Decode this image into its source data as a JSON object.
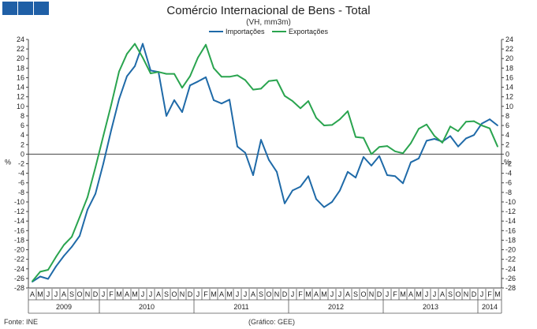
{
  "header": {
    "logo_color": "#1f5fa6",
    "title": "Comércio Internacional de Bens - Total",
    "subtitle": "(VH, mm3m)"
  },
  "footer": {
    "source": "Fonte: INE",
    "credit": "(Gráfico: GEE)"
  },
  "chart_data": {
    "type": "line",
    "title": "Comércio Internacional de Bens - Total",
    "subtitle": "(VH, mm3m)",
    "ylabel_left": "%",
    "ylabel_right": "%",
    "ylim": [
      -28,
      24
    ],
    "y_ticks": [
      24,
      22,
      20,
      18,
      16,
      14,
      12,
      10,
      8,
      6,
      4,
      2,
      0,
      -2,
      -4,
      -6,
      -8,
      -10,
      -12,
      -14,
      -16,
      -18,
      -20,
      -22,
      -24,
      -26,
      -28
    ],
    "grid": false,
    "legend_position": "top-center",
    "x_months": [
      "A",
      "M",
      "J",
      "J",
      "A",
      "S",
      "O",
      "N",
      "D",
      "J",
      "F",
      "M",
      "A",
      "M",
      "J",
      "J",
      "A",
      "S",
      "O",
      "N",
      "D",
      "J",
      "F",
      "M",
      "A",
      "M",
      "J",
      "J",
      "A",
      "S",
      "O",
      "N",
      "D",
      "J",
      "F",
      "M",
      "A",
      "M",
      "J",
      "J",
      "A",
      "S",
      "O",
      "N",
      "D",
      "J",
      "F",
      "M",
      "A",
      "M",
      "J",
      "J",
      "A",
      "S",
      "O",
      "N",
      "D",
      "J",
      "F",
      "M"
    ],
    "x_years": [
      {
        "label": "2009",
        "start": 0,
        "count": 9
      },
      {
        "label": "2010",
        "start": 9,
        "count": 12
      },
      {
        "label": "2011",
        "start": 21,
        "count": 12
      },
      {
        "label": "2012",
        "start": 33,
        "count": 12
      },
      {
        "label": "2013",
        "start": 45,
        "count": 12
      },
      {
        "label": "2014",
        "start": 57,
        "count": 3
      }
    ],
    "series": [
      {
        "name": "Importações",
        "color": "#1f6aa8",
        "values": [
          -26.7,
          -25.6,
          -26.1,
          -23.5,
          -21.3,
          -19.4,
          -17.1,
          -11.6,
          -8.3,
          -2.0,
          5.0,
          11.5,
          16.3,
          18.4,
          23.1,
          17.5,
          17.2,
          8.0,
          11.3,
          8.8,
          14.4,
          15.2,
          16.1,
          11.3,
          10.6,
          11.4,
          1.6,
          0.3,
          -4.4,
          3.0,
          -1.2,
          -3.7,
          -10.3,
          -7.6,
          -6.8,
          -4.6,
          -9.4,
          -11.1,
          -10.0,
          -7.6,
          -3.7,
          -4.9,
          -0.6,
          -2.4,
          -0.4,
          -4.4,
          -4.6,
          -6.1,
          -1.7,
          -0.9,
          2.8,
          3.2,
          2.6,
          3.8,
          1.6,
          3.3,
          4.0,
          6.4,
          7.3,
          6.0
        ]
      },
      {
        "name": "Exportações",
        "color": "#2aa44f",
        "values": [
          -26.6,
          -24.6,
          -24.2,
          -21.5,
          -19.0,
          -17.3,
          -13.2,
          -9.0,
          -2.8,
          3.8,
          10.3,
          17.3,
          21.0,
          23.1,
          20.2,
          16.9,
          17.2,
          16.8,
          16.8,
          13.9,
          16.3,
          20.2,
          22.9,
          18.0,
          16.2,
          16.2,
          16.5,
          15.5,
          13.5,
          13.7,
          15.3,
          15.5,
          12.2,
          11.1,
          9.6,
          11.1,
          7.6,
          6.0,
          6.1,
          7.3,
          9.0,
          3.6,
          3.4,
          0.0,
          1.5,
          1.7,
          0.6,
          0.2,
          2.3,
          5.3,
          6.2,
          3.8,
          2.4,
          5.8,
          4.8,
          6.8,
          6.9,
          6.0,
          5.4,
          1.6
        ]
      }
    ]
  }
}
